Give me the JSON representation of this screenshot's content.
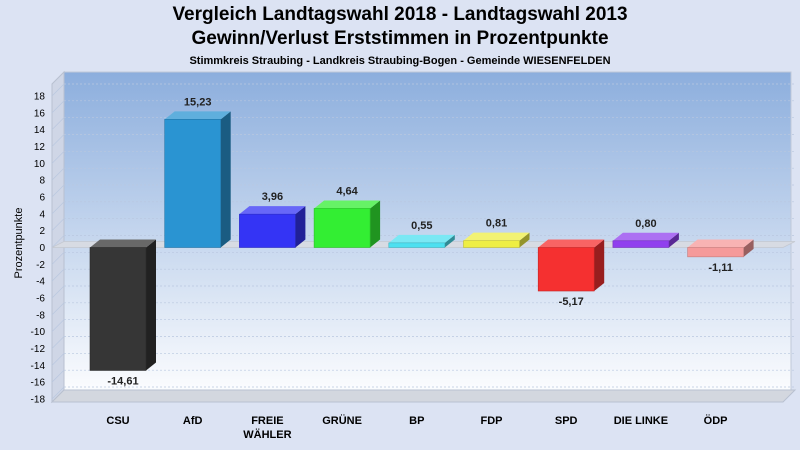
{
  "header": {
    "title": "Vergleich Landtagswahl 2018 - Landtagswahl 2013",
    "subtitle": "Gewinn/Verlust Erststimmen in Prozentpunkte",
    "region": "Stimmkreis Straubing - Landkreis Straubing-Bogen - Gemeinde WIESENFELDEN"
  },
  "chart_data": {
    "type": "bar",
    "title": "Vergleich Landtagswahl 2018 - Landtagswahl 2013",
    "ylabel": "Prozentpunkte",
    "xlabel": "",
    "ylim": [
      -18,
      18
    ],
    "yticks": [
      18,
      16,
      14,
      12,
      10,
      8,
      6,
      4,
      2,
      0,
      -2,
      -4,
      -6,
      -8,
      -10,
      -12,
      -14,
      -16,
      -18
    ],
    "grid": true,
    "categories": [
      "CSU",
      "AfD",
      "FREIE WÄHLER",
      "GRÜNE",
      "BP",
      "FDP",
      "SPD",
      "DIE LINKE",
      "ÖDP"
    ],
    "category_lines": [
      [
        "CSU"
      ],
      [
        "AfD"
      ],
      [
        "FREIE",
        "WÄHLER"
      ],
      [
        "GRÜNE"
      ],
      [
        "BP"
      ],
      [
        "FDP"
      ],
      [
        "SPD"
      ],
      [
        "DIE LINKE"
      ],
      [
        "ÖDP"
      ]
    ],
    "values": [
      -14.61,
      15.23,
      3.96,
      4.64,
      0.55,
      0.81,
      -5.17,
      0.8,
      -1.11
    ],
    "value_labels": [
      "-14,61",
      "15,23",
      "3,96",
      "4,64",
      "0,55",
      "0,81",
      "-5,17",
      "0,80",
      "-1,11"
    ],
    "colors": [
      "#363636",
      "#2a94d2",
      "#3434f5",
      "#33ee33",
      "#4de0f0",
      "#eeee44",
      "#f53030",
      "#9040ee",
      "#f59a9a"
    ]
  }
}
